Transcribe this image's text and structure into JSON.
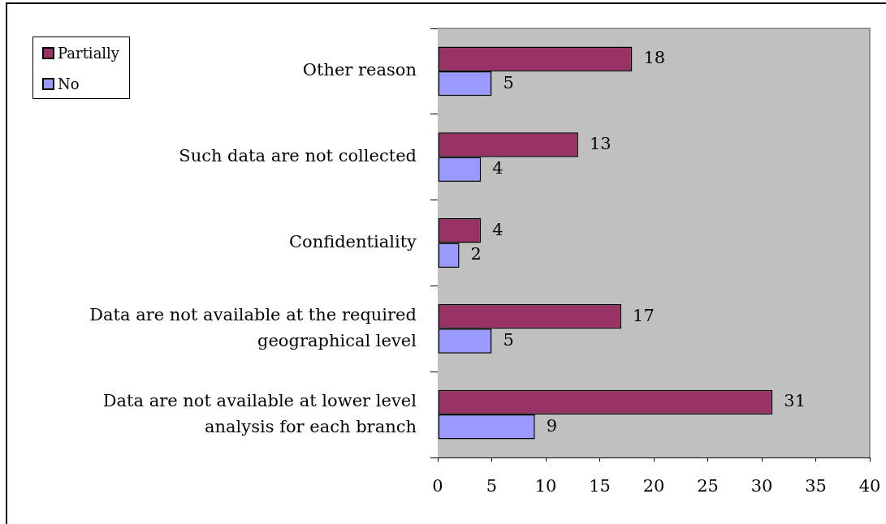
{
  "chart_data": {
    "type": "bar",
    "orientation": "horizontal",
    "categories": [
      "Other reason",
      "Such data are not collected",
      "Confidentiality",
      "Data are not available at the required geographical level",
      "Data are not available at lower level analysis for each branch"
    ],
    "series": [
      {
        "name": "Partially",
        "color": "#993366",
        "values": [
          18,
          13,
          4,
          17,
          31
        ]
      },
      {
        "name": "No",
        "color": "#9999ff",
        "values": [
          5,
          4,
          2,
          5,
          9
        ]
      }
    ],
    "xlim": [
      0,
      40
    ],
    "xticks": [
      0,
      5,
      10,
      15,
      20,
      25,
      30,
      35,
      40
    ],
    "data_labels": true,
    "legend": "top left"
  }
}
